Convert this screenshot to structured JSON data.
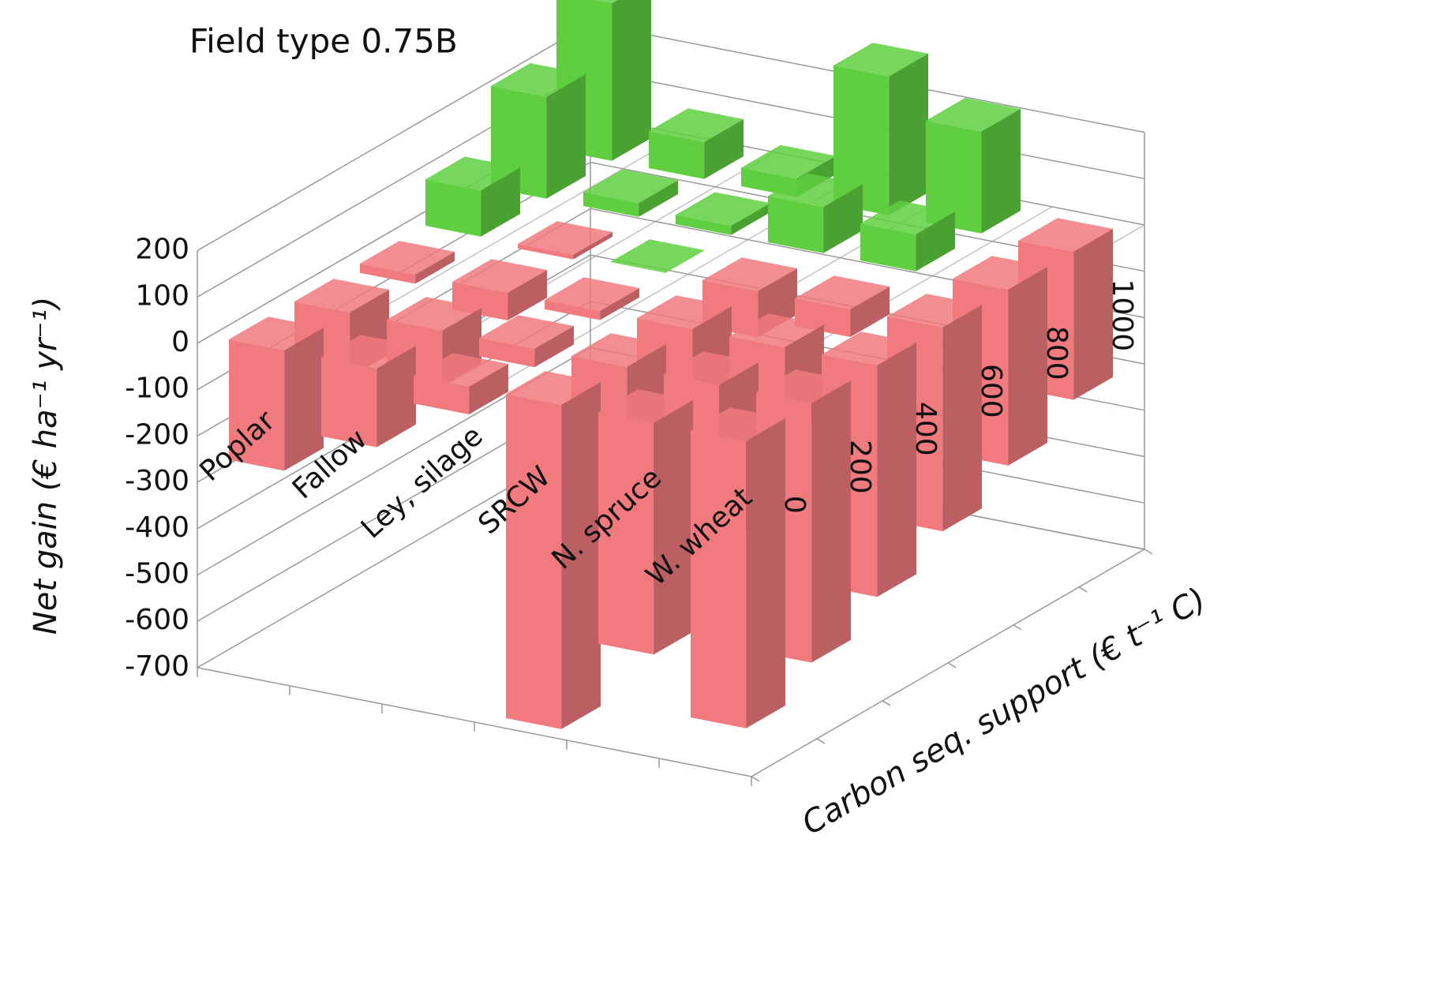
{
  "chart_data": {
    "type": "bar3d",
    "title": "Field type 0.75B",
    "y_label": "Net gain (€ ha⁻¹ yr⁻¹)",
    "z_label": "Carbon seq. support (€ t⁻¹ C)",
    "categories": [
      "Poplar",
      "Fallow",
      "Ley, silage",
      "SRCW",
      "N. spruce",
      "W. wheat"
    ],
    "depth_categories": [
      "0",
      "200",
      "400",
      "600",
      "800",
      "1000"
    ],
    "values": [
      [
        -260,
        -140,
        -20,
        100,
        220,
        340
      ],
      [
        -170,
        -120,
        -60,
        -10,
        30,
        80
      ],
      [
        -60,
        -40,
        -20,
        0,
        20,
        40
      ],
      [
        -700,
        -500,
        -300,
        -100,
        100,
        300
      ],
      [
        -500,
        -350,
        -200,
        -60,
        80,
        220
      ],
      [
        -620,
        -560,
        -500,
        -440,
        -380,
        -320
      ]
    ],
    "positive_color": "#5fcf3f",
    "negative_color": "#f07a7e",
    "ylim": [
      -700,
      200
    ],
    "yticks": [
      -700,
      -600,
      -500,
      -400,
      -300,
      -200,
      -100,
      0,
      100,
      200
    ],
    "grid": true
  }
}
